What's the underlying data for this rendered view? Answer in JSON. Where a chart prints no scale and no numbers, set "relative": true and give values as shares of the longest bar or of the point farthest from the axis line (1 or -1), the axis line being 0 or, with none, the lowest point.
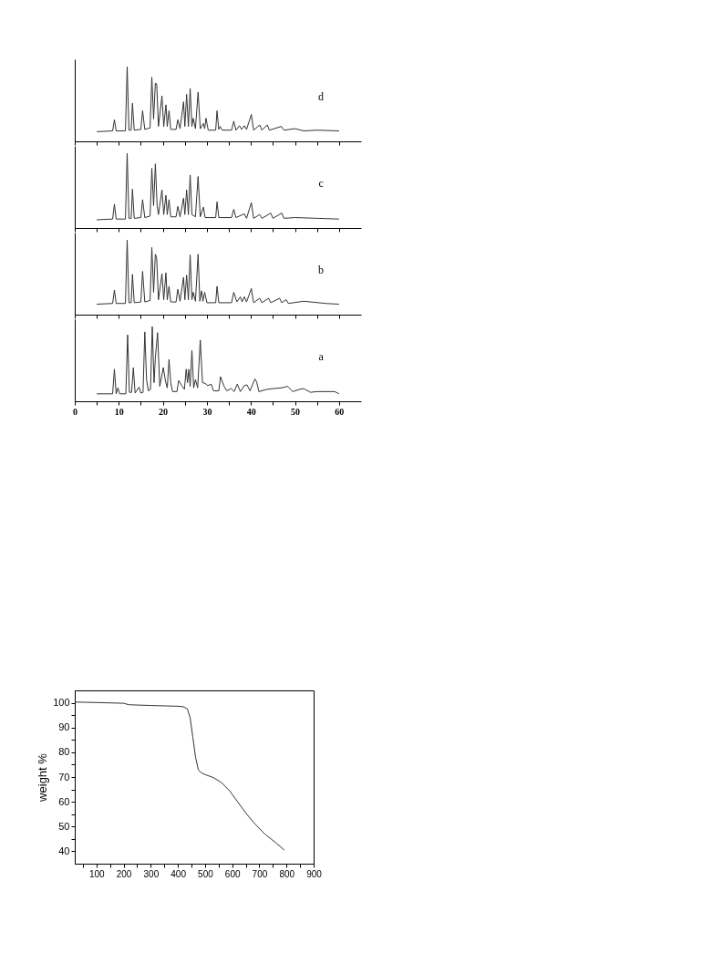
{
  "chart_data": [
    {
      "type": "line",
      "relative": true,
      "tick_labels": false,
      "xlim": [
        0,
        65
      ],
      "xticks": [
        0,
        {
          "value": 5,
          "label": null
        },
        10,
        {
          "value": 15,
          "label": null
        },
        20,
        {
          "value": 25,
          "label": null
        },
        30,
        {
          "value": 35,
          "label": null
        },
        40,
        {
          "value": 45,
          "label": null
        },
        50,
        {
          "value": 55,
          "label": null
        },
        60
      ],
      "x": [
        5,
        8.6,
        9.0,
        9.4,
        11.5,
        11.9,
        12.3,
        12.8,
        13.1,
        13.5,
        15.0,
        15.4,
        15.9,
        17.1,
        17.5,
        17.9,
        18.3,
        18.6,
        19.0,
        19.8,
        20.2,
        20.7,
        21.0,
        21.4,
        21.8,
        23.0,
        23.4,
        23.9,
        24.7,
        25.0,
        25.4,
        25.8,
        26.2,
        26.6,
        26.9,
        27.4,
        28.0,
        28.5,
        29.2,
        29.5,
        29.8,
        30.3,
        32.0,
        32.3,
        32.7,
        33.0,
        33.5,
        35.6,
        36.1,
        36.6,
        37.4,
        37.9,
        38.5,
        39.0,
        40.1,
        40.6,
        42.0,
        42.5,
        43.7,
        44.2,
        46.9,
        47.5,
        50,
        52,
        55,
        60
      ],
      "series": [
        {
          "name": "d",
          "color": "#333333",
          "values": [
            0.13,
            0.14,
            0.29,
            0.14,
            0.14,
            1.0,
            0.15,
            0.15,
            0.51,
            0.15,
            0.16,
            0.41,
            0.16,
            0.18,
            0.86,
            0.3,
            0.78,
            0.77,
            0.2,
            0.61,
            0.2,
            0.49,
            0.2,
            0.41,
            0.16,
            0.16,
            0.29,
            0.17,
            0.53,
            0.2,
            0.63,
            0.2,
            0.71,
            0.2,
            0.31,
            0.17,
            0.66,
            0.17,
            0.24,
            0.17,
            0.31,
            0.15,
            0.15,
            0.41,
            0.16,
            0.2,
            0.15,
            0.15,
            0.27,
            0.15,
            0.21,
            0.16,
            0.21,
            0.16,
            0.36,
            0.15,
            0.22,
            0.15,
            0.22,
            0.15,
            0.2,
            0.15,
            0.17,
            0.14,
            0.15,
            0.14
          ]
        }
      ]
    },
    {
      "type": "line",
      "relative": true,
      "tick_labels": false,
      "xlim": [
        0,
        65
      ],
      "xticks": [
        0,
        {
          "value": 5,
          "label": null
        },
        10,
        {
          "value": 15,
          "label": null
        },
        20,
        {
          "value": 25,
          "label": null
        },
        30,
        {
          "value": 35,
          "label": null
        },
        40,
        {
          "value": 45,
          "label": null
        },
        50,
        {
          "value": 55,
          "label": null
        },
        60
      ],
      "x": [
        5,
        8.6,
        9.0,
        9.4,
        11.5,
        11.9,
        12.3,
        12.8,
        13.1,
        13.5,
        15.0,
        15.4,
        15.9,
        17.1,
        17.5,
        17.9,
        18.3,
        18.7,
        19.0,
        19.8,
        20.2,
        20.7,
        21.0,
        21.4,
        21.8,
        23.0,
        23.4,
        23.9,
        24.7,
        25.0,
        25.4,
        25.8,
        26.2,
        26.6,
        27.4,
        28.0,
        28.5,
        29.2,
        29.6,
        32.0,
        32.3,
        32.7,
        35.6,
        36.1,
        36.6,
        38.5,
        39.0,
        40.1,
        40.6,
        42.0,
        42.5,
        44.5,
        45.0,
        47.0,
        47.5,
        50,
        55,
        60
      ],
      "series": [
        {
          "name": "c",
          "color": "#333333",
          "values": [
            0.11,
            0.12,
            0.32,
            0.12,
            0.12,
            1.0,
            0.13,
            0.13,
            0.52,
            0.13,
            0.14,
            0.38,
            0.14,
            0.16,
            0.8,
            0.3,
            0.86,
            0.3,
            0.18,
            0.51,
            0.18,
            0.44,
            0.18,
            0.38,
            0.15,
            0.15,
            0.29,
            0.15,
            0.4,
            0.18,
            0.51,
            0.18,
            0.71,
            0.18,
            0.15,
            0.69,
            0.15,
            0.28,
            0.14,
            0.14,
            0.35,
            0.14,
            0.14,
            0.25,
            0.14,
            0.19,
            0.13,
            0.34,
            0.13,
            0.18,
            0.13,
            0.2,
            0.13,
            0.2,
            0.13,
            0.14,
            0.13,
            0.12
          ]
        }
      ]
    },
    {
      "type": "line",
      "relative": true,
      "tick_labels": false,
      "xlim": [
        0,
        65
      ],
      "xticks": [
        0,
        {
          "value": 5,
          "label": null
        },
        10,
        {
          "value": 15,
          "label": null
        },
        20,
        {
          "value": 25,
          "label": null
        },
        30,
        {
          "value": 35,
          "label": null
        },
        40,
        {
          "value": 45,
          "label": null
        },
        50,
        {
          "value": 55,
          "label": null
        },
        60
      ],
      "x": [
        5,
        8.6,
        9.0,
        9.4,
        11.5,
        11.9,
        12.3,
        12.8,
        13.1,
        13.5,
        15.0,
        15.4,
        15.9,
        17.1,
        17.5,
        17.9,
        18.3,
        18.6,
        19.0,
        19.8,
        20.2,
        20.7,
        21.0,
        21.4,
        21.8,
        23.0,
        23.4,
        23.9,
        24.7,
        25.0,
        25.4,
        25.8,
        26.2,
        26.6,
        26.9,
        27.4,
        28.0,
        28.4,
        28.8,
        29.1,
        29.5,
        30.0,
        32.0,
        32.3,
        32.7,
        35.6,
        36.1,
        36.8,
        37.6,
        38.0,
        38.5,
        39.0,
        40.1,
        40.6,
        42.0,
        42.5,
        44.0,
        44.5,
        46.5,
        47.0,
        48.0,
        48.5,
        52,
        57,
        60
      ],
      "series": [
        {
          "name": "b",
          "color": "#333333",
          "values": [
            0.14,
            0.15,
            0.33,
            0.15,
            0.15,
            1.0,
            0.16,
            0.16,
            0.54,
            0.16,
            0.17,
            0.58,
            0.17,
            0.19,
            0.9,
            0.3,
            0.81,
            0.76,
            0.2,
            0.55,
            0.2,
            0.56,
            0.2,
            0.38,
            0.17,
            0.17,
            0.34,
            0.18,
            0.5,
            0.2,
            0.53,
            0.2,
            0.8,
            0.2,
            0.3,
            0.18,
            0.81,
            0.18,
            0.32,
            0.18,
            0.3,
            0.16,
            0.16,
            0.38,
            0.16,
            0.16,
            0.3,
            0.17,
            0.24,
            0.17,
            0.24,
            0.17,
            0.35,
            0.16,
            0.22,
            0.16,
            0.22,
            0.16,
            0.22,
            0.16,
            0.2,
            0.15,
            0.18,
            0.15,
            0.14
          ]
        }
      ]
    },
    {
      "type": "line",
      "relative": true,
      "tick_labels": "x",
      "xlim": [
        0,
        65
      ],
      "xticks": [
        0,
        {
          "value": 5,
          "label": null
        },
        10,
        {
          "value": 15,
          "label": null
        },
        20,
        {
          "value": 25,
          "label": null
        },
        30,
        {
          "value": 35,
          "label": null
        },
        40,
        {
          "value": 45,
          "label": null
        },
        50,
        {
          "value": 55,
          "label": null
        },
        60
      ],
      "x": [
        5,
        8.6,
        9.0,
        9.4,
        9.8,
        10.2,
        11.6,
        12.0,
        12.4,
        12.9,
        13.3,
        13.7,
        14.6,
        15.0,
        15.5,
        15.9,
        16.3,
        16.7,
        17.2,
        17.6,
        18.0,
        18.3,
        18.8,
        19.3,
        20.1,
        20.6,
        21.0,
        21.4,
        21.8,
        22.2,
        23.2,
        23.6,
        24.3,
        24.9,
        25.3,
        25.6,
        25.9,
        26.2,
        26.6,
        27.0,
        27.4,
        27.9,
        28.5,
        29.0,
        29.6,
        30.2,
        31.0,
        31.5,
        32.7,
        33.1,
        33.9,
        34.5,
        35.5,
        36.2,
        36.9,
        37.6,
        38.5,
        39.1,
        39.8,
        40.9,
        41.3,
        41.8,
        43.6,
        45.0,
        47.0,
        48.3,
        49.5,
        51.0,
        52.0,
        53.5,
        55.0,
        59.0,
        60
      ],
      "series": [
        {
          "name": "a",
          "color": "#333333",
          "values": [
            0.1,
            0.1,
            0.43,
            0.1,
            0.18,
            0.1,
            0.1,
            0.89,
            0.12,
            0.12,
            0.45,
            0.11,
            0.19,
            0.11,
            0.12,
            0.93,
            0.29,
            0.14,
            0.16,
            1.0,
            0.25,
            0.58,
            0.92,
            0.2,
            0.45,
            0.27,
            0.18,
            0.56,
            0.25,
            0.13,
            0.13,
            0.28,
            0.21,
            0.16,
            0.43,
            0.25,
            0.43,
            0.2,
            0.68,
            0.18,
            0.29,
            0.18,
            0.82,
            0.25,
            0.24,
            0.21,
            0.23,
            0.14,
            0.14,
            0.33,
            0.2,
            0.14,
            0.17,
            0.13,
            0.23,
            0.13,
            0.21,
            0.22,
            0.14,
            0.3,
            0.26,
            0.13,
            0.16,
            0.17,
            0.18,
            0.2,
            0.13,
            0.16,
            0.17,
            0.12,
            0.13,
            0.13,
            0.1
          ]
        }
      ]
    },
    {
      "type": "line",
      "ylabel": "weight %",
      "xlim": [
        20,
        900
      ],
      "ylim": [
        35,
        105
      ],
      "xticks": [
        {
          "value": 50,
          "label": null
        },
        100,
        {
          "value": 150,
          "label": null
        },
        200,
        {
          "value": 250,
          "label": null
        },
        300,
        {
          "value": 350,
          "label": null
        },
        400,
        {
          "value": 450,
          "label": null
        },
        500,
        {
          "value": 550,
          "label": null
        },
        600,
        {
          "value": 650,
          "label": null
        },
        700,
        {
          "value": 750,
          "label": null
        },
        800,
        {
          "value": 850,
          "label": null
        },
        900
      ],
      "yticks": [
        40,
        {
          "value": 45,
          "label": null
        },
        50,
        {
          "value": 55,
          "label": null
        },
        60,
        {
          "value": 65,
          "label": null
        },
        70,
        {
          "value": 75,
          "label": null
        },
        80,
        {
          "value": 85,
          "label": null
        },
        90,
        {
          "value": 95,
          "label": null
        },
        100
      ],
      "x": [
        20,
        100,
        200,
        220,
        300,
        400,
        420,
        435,
        445,
        455,
        465,
        475,
        485,
        500,
        530,
        560,
        590,
        620,
        650,
        680,
        720,
        760,
        792
      ],
      "series": [
        {
          "color": "#333333",
          "values": [
            100.3,
            100.1,
            99.8,
            99.2,
            98.9,
            98.6,
            98.4,
            97.5,
            94,
            86,
            78,
            73,
            71.8,
            71,
            69.8,
            67.8,
            64.5,
            60,
            55.5,
            51.5,
            47,
            43.5,
            40.5
          ]
        }
      ]
    }
  ]
}
